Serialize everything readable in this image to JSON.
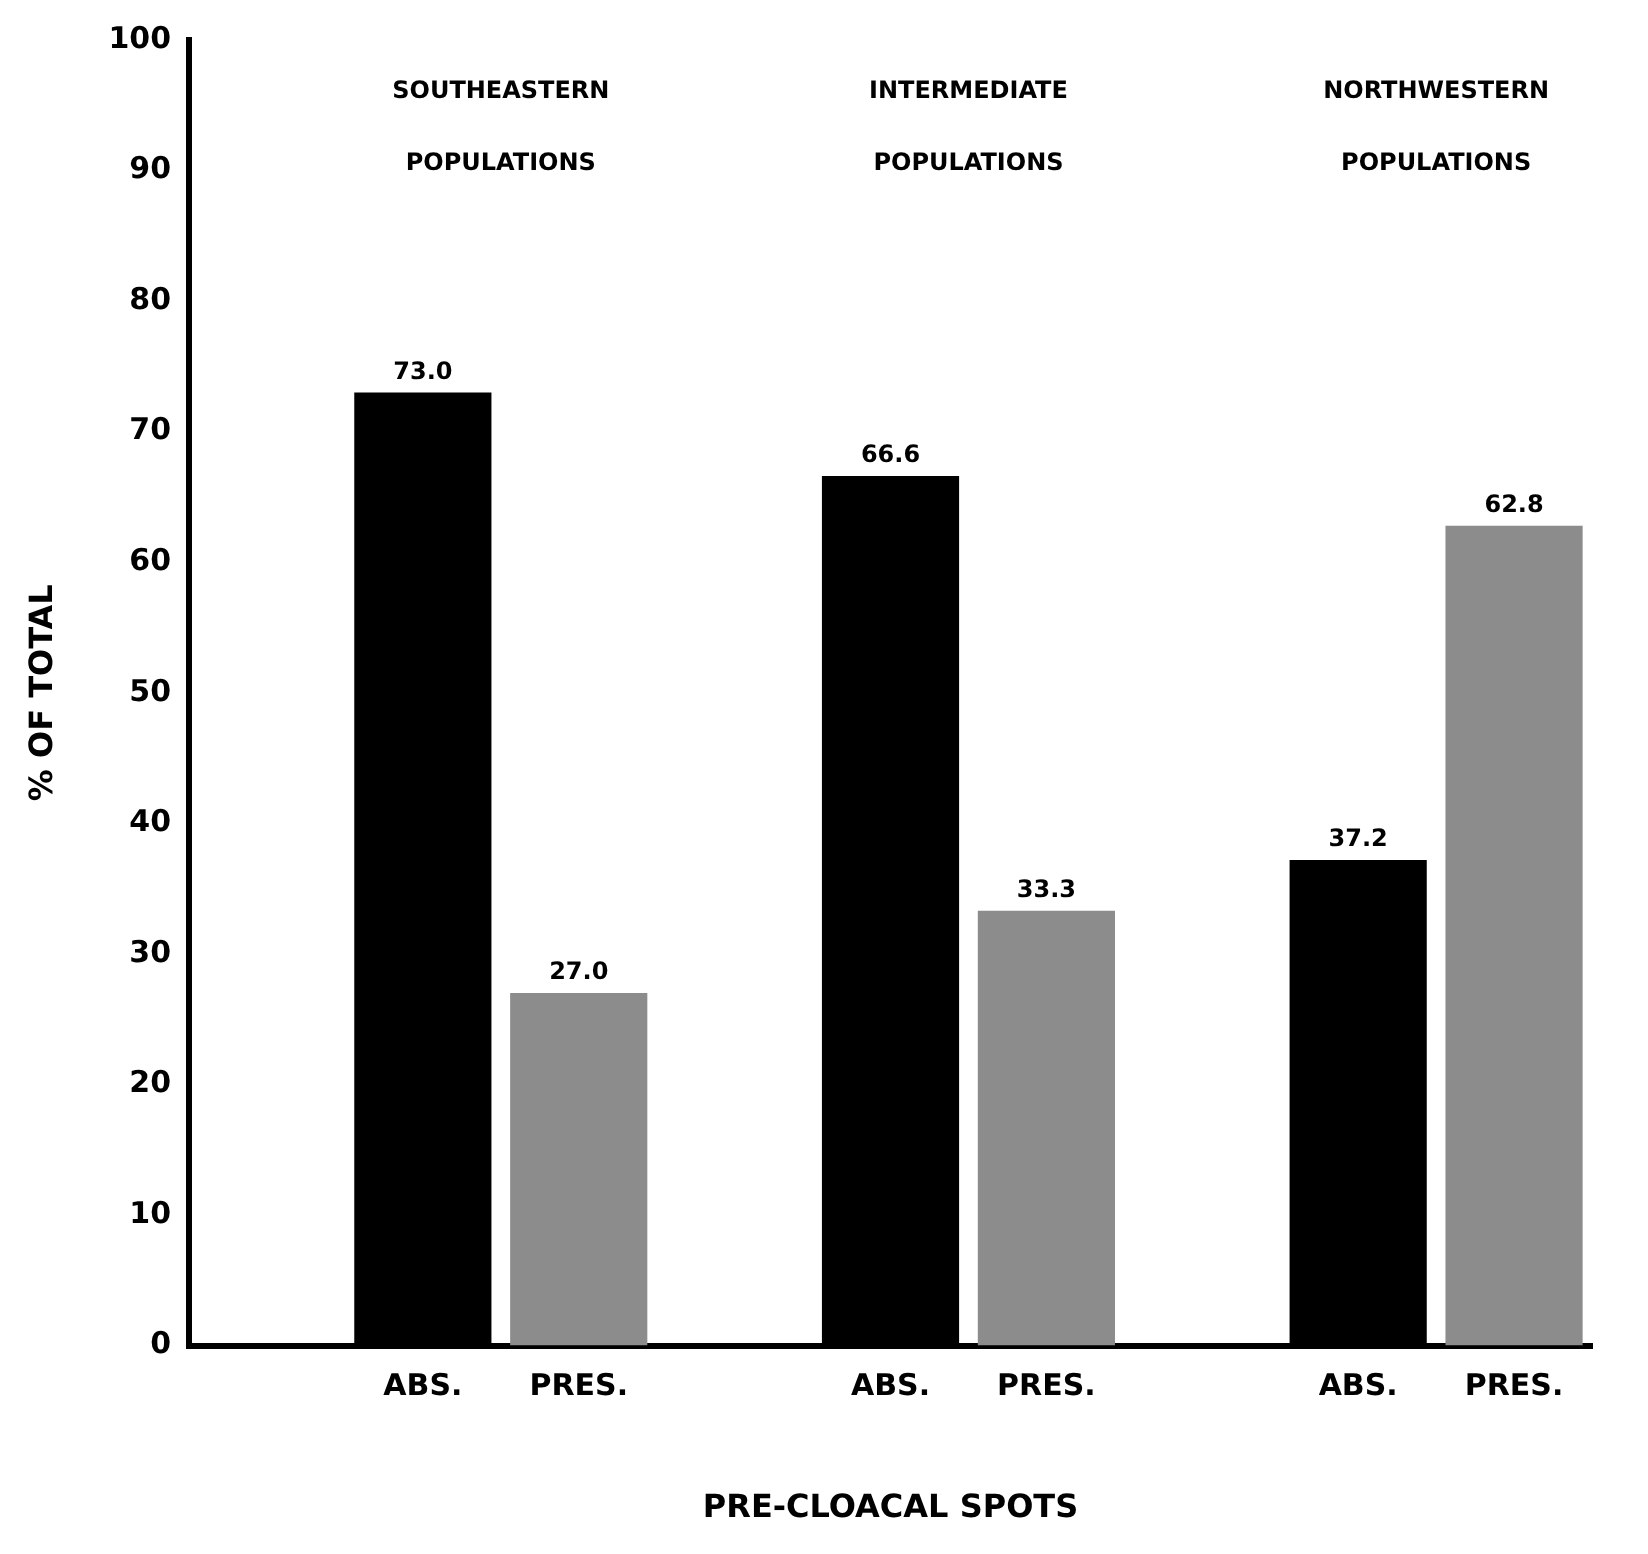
{
  "chart_data": {
    "type": "bar",
    "xlabel": "PRE-CLOACAL SPOTS",
    "ylabel": "% OF TOTAL",
    "categories": [
      null,
      "ABS.",
      "PRES.",
      null,
      "ABS.",
      "PRES.",
      null,
      "ABS.",
      "PRES."
    ],
    "values": [
      null,
      73.0,
      27.0,
      null,
      66.6,
      33.3,
      null,
      37.2,
      62.8
    ],
    "colors": [
      "#000000",
      "#000000",
      "#8c8c8c",
      "#000000",
      "#000000",
      "#8c8c8c",
      "#000000",
      "#000000",
      "#8c8c8c"
    ],
    "ylim": [
      0,
      100
    ],
    "yticks": [
      0,
      10,
      20,
      30,
      40,
      50,
      60,
      70,
      80,
      90,
      100
    ],
    "value_labels": [
      null,
      "73.0",
      "27.0",
      null,
      "66.6",
      "33.3",
      null,
      "37.2",
      "62.8"
    ],
    "grid": false,
    "legend": false,
    "annotations": [
      "SOUTHEASTERN POPULATIONS",
      "INTERMEDIATE POPULATIONS",
      "NORTHWESTERN POPULATIONS"
    ]
  }
}
